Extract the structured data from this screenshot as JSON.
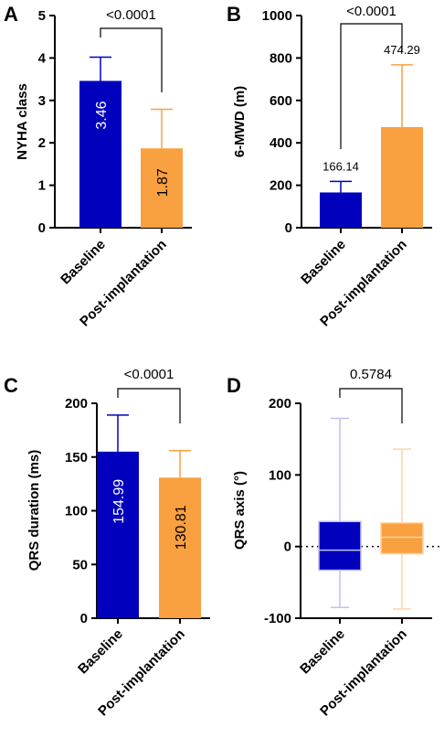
{
  "colors": {
    "baseline": "#0000bd",
    "post": "#f9a040",
    "baseline_light": "#c0c0ee",
    "post_light": "#fbd4a6"
  },
  "chart_data": [
    {
      "panel": "A",
      "type": "bar",
      "categories": [
        "Baseline",
        "Post-implantation"
      ],
      "values": [
        3.46,
        1.87
      ],
      "error_upper": [
        4.02,
        2.79
      ],
      "data_labels": [
        "3.46",
        "1.87"
      ],
      "ylabel": "NYHA class",
      "ylim": [
        0,
        5
      ],
      "yticks": [
        "0",
        "1",
        "2",
        "3",
        "4",
        "5"
      ],
      "p_value": "<0.0001"
    },
    {
      "panel": "B",
      "type": "bar",
      "categories": [
        "Baseline",
        "Post-implantation"
      ],
      "values": [
        166.14,
        474.29
      ],
      "error_upper": [
        218,
        768
      ],
      "data_labels": [
        "166.14",
        "474.29"
      ],
      "ylabel": "6-MWD (m)",
      "ylim": [
        0,
        1000
      ],
      "yticks": [
        "0",
        "200",
        "400",
        "600",
        "800",
        "1000"
      ],
      "p_value": "<0.0001"
    },
    {
      "panel": "C",
      "type": "bar",
      "categories": [
        "Baseline",
        "Post-implantation"
      ],
      "values": [
        154.99,
        130.81
      ],
      "error_upper": [
        189,
        156
      ],
      "data_labels": [
        "154.99",
        "130.81"
      ],
      "ylabel": "QRS duration (ms)",
      "ylim": [
        0,
        200
      ],
      "yticks": [
        "0",
        "50",
        "100",
        "150",
        "200"
      ],
      "p_value": "<0.0001"
    },
    {
      "panel": "D",
      "type": "box",
      "categories": [
        "Baseline",
        "Post-implantation"
      ],
      "boxes": [
        {
          "min": -85,
          "q1": -33,
          "median": -5,
          "q3": 35,
          "max": 179
        },
        {
          "min": -87,
          "q1": -10,
          "median": 13,
          "q3": 33,
          "max": 136
        }
      ],
      "ylabel": "QRS axis (°)",
      "ylim": [
        -100,
        200
      ],
      "yticks": [
        "-100",
        "0",
        "100",
        "200"
      ],
      "p_value": "0.5784"
    }
  ]
}
